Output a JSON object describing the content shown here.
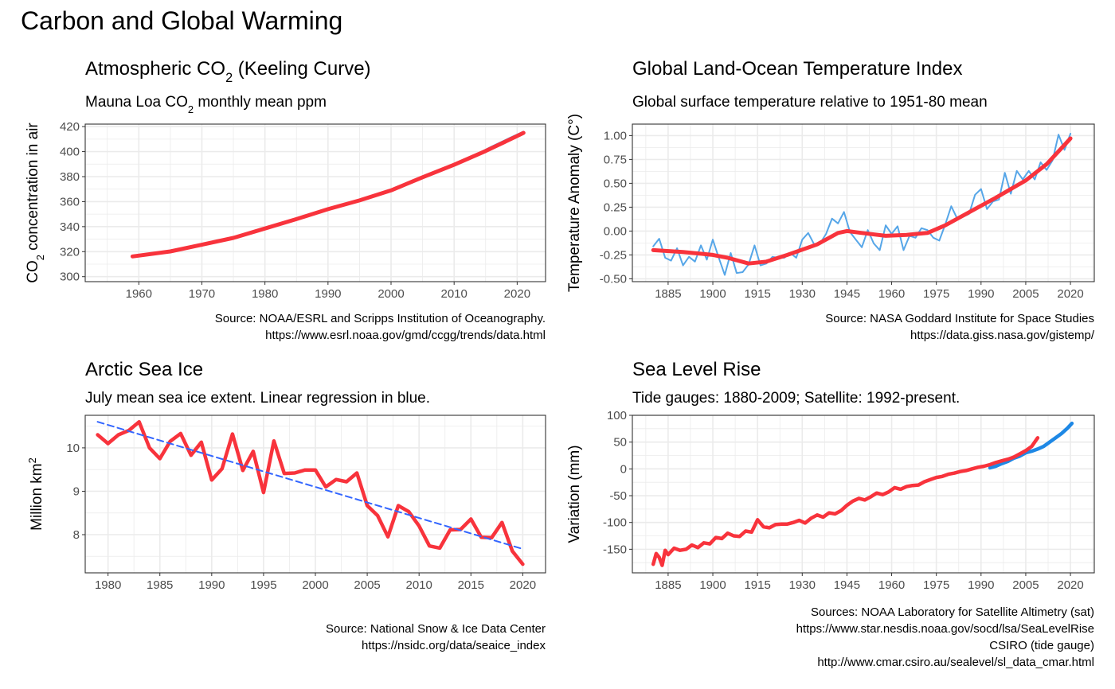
{
  "title": "Carbon and Global Warming",
  "colors": {
    "red": "#F8333C",
    "blue": "#56A6E8",
    "dash": "#3366FF",
    "satellite": "#1E88E5",
    "grid": "#EBEBEB",
    "border": "#333333"
  },
  "chart_data": [
    {
      "type": "line",
      "title_main": "Atmospheric CO",
      "title_sub_script": "2",
      "title_tail": " (Keeling Curve)",
      "subtitle_main": "Mauna Loa CO",
      "subtitle_sub_script": "2",
      "subtitle_tail": " monthly mean ppm",
      "ylabel_main": "CO",
      "ylabel_sub_script": "2",
      "ylabel_tail": " concentration in air",
      "xlabel": "",
      "xlim": [
        1951.5,
        2024.5
      ],
      "ylim": [
        296,
        422
      ],
      "xticks": [
        1960,
        1970,
        1980,
        1990,
        2000,
        2010,
        2020
      ],
      "yticks": [
        300,
        320,
        340,
        360,
        380,
        400,
        420
      ],
      "caption": [
        "Source: NOAA/ESRL and Scripps Institution of Oceanography.",
        "https://www.esrl.noaa.gov/gmd/ccgg/trends/data.html"
      ],
      "series": [
        {
          "role": "monthly",
          "color": "#56A6E8",
          "x": [
            1959,
            1962,
            1965,
            1968,
            1971,
            1974,
            1977,
            1980,
            1983,
            1986,
            1989,
            1992,
            1995,
            1998,
            2001,
            2004,
            2007,
            2010,
            2013,
            2016,
            2019,
            2021
          ],
          "y": [
            315.9,
            318.4,
            320.0,
            323.0,
            326.3,
            330.2,
            333.8,
            338.6,
            343.0,
            347.2,
            352.9,
            356.5,
            360.8,
            366.7,
            371.0,
            377.6,
            383.7,
            389.9,
            396.5,
            404.2,
            411.4,
            416.0
          ]
        },
        {
          "role": "smooth",
          "color": "#F8333C",
          "x": [
            1959,
            1965,
            1970,
            1975,
            1980,
            1985,
            1990,
            1995,
            2000,
            2005,
            2010,
            2015,
            2020,
            2021
          ],
          "y": [
            316.2,
            320.2,
            325.5,
            331.0,
            338.5,
            346.0,
            354.0,
            361.0,
            369.0,
            379.5,
            389.5,
            400.5,
            412.5,
            415.0
          ]
        }
      ]
    },
    {
      "type": "line",
      "title_main": "Global Land-Ocean Temperature Index",
      "subtitle_main": "Global surface temperature relative to 1951-80 mean",
      "ylabel_main": "Temperature Anomaly (C°)",
      "xlabel": "",
      "xlim": [
        1873,
        2028
      ],
      "ylim": [
        -0.53,
        1.12
      ],
      "xticks": [
        1885,
        1900,
        1915,
        1930,
        1945,
        1960,
        1975,
        1990,
        2005,
        2020
      ],
      "yticks": [
        -0.5,
        -0.25,
        0.0,
        0.25,
        0.5,
        0.75,
        1.0
      ],
      "ytick_labels": [
        "-0.50",
        "-0.25",
        "0.00",
        "0.25",
        "0.50",
        "0.75",
        "1.00"
      ],
      "caption": [
        "Source: NASA Goddard Institute for Space Studies",
        "https://data.giss.nasa.gov/gistemp/"
      ],
      "series": [
        {
          "role": "annual",
          "color": "#56A6E8",
          "x": [
            1880,
            1882,
            1884,
            1886,
            1888,
            1890,
            1892,
            1894,
            1896,
            1898,
            1900,
            1902,
            1904,
            1906,
            1908,
            1910,
            1912,
            1914,
            1916,
            1918,
            1920,
            1922,
            1924,
            1926,
            1928,
            1930,
            1932,
            1934,
            1936,
            1938,
            1940,
            1942,
            1944,
            1946,
            1948,
            1950,
            1952,
            1954,
            1956,
            1958,
            1960,
            1962,
            1964,
            1966,
            1968,
            1970,
            1972,
            1974,
            1976,
            1978,
            1980,
            1982,
            1984,
            1986,
            1988,
            1990,
            1992,
            1994,
            1996,
            1998,
            2000,
            2002,
            2004,
            2006,
            2008,
            2010,
            2012,
            2014,
            2016,
            2018,
            2020
          ],
          "y": [
            -0.16,
            -0.08,
            -0.28,
            -0.31,
            -0.18,
            -0.36,
            -0.27,
            -0.32,
            -0.15,
            -0.3,
            -0.09,
            -0.28,
            -0.46,
            -0.23,
            -0.44,
            -0.43,
            -0.35,
            -0.15,
            -0.36,
            -0.34,
            -0.27,
            -0.28,
            -0.28,
            -0.23,
            -0.28,
            -0.09,
            -0.02,
            -0.14,
            -0.13,
            -0.03,
            0.13,
            0.08,
            0.2,
            -0.01,
            -0.09,
            -0.17,
            0.01,
            -0.13,
            -0.2,
            0.06,
            -0.03,
            0.05,
            -0.2,
            -0.05,
            -0.07,
            0.03,
            0.01,
            -0.07,
            -0.1,
            0.07,
            0.26,
            0.13,
            0.15,
            0.18,
            0.38,
            0.44,
            0.23,
            0.31,
            0.33,
            0.61,
            0.39,
            0.63,
            0.54,
            0.63,
            0.54,
            0.72,
            0.64,
            0.74,
            1.01,
            0.85,
            1.02
          ]
        },
        {
          "role": "smooth",
          "color": "#F8333C",
          "x": [
            1880,
            1890,
            1900,
            1905,
            1912,
            1918,
            1925,
            1935,
            1942,
            1945,
            1950,
            1958,
            1965,
            1972,
            1978,
            1985,
            1995,
            2005,
            2012,
            2020
          ],
          "y": [
            -0.2,
            -0.22,
            -0.25,
            -0.28,
            -0.34,
            -0.32,
            -0.25,
            -0.14,
            -0.02,
            0.0,
            -0.02,
            -0.05,
            -0.04,
            -0.02,
            0.06,
            0.18,
            0.35,
            0.53,
            0.7,
            0.97
          ]
        }
      ]
    },
    {
      "type": "line",
      "title_main": "Arctic Sea Ice",
      "subtitle_main": "July mean sea ice extent. Linear regression in blue.",
      "ylabel_main": "Million km",
      "ylabel_sup_script": "2",
      "xlabel": "",
      "xlim": [
        1977.8,
        2022.2
      ],
      "ylim": [
        7.12,
        10.75
      ],
      "xticks": [
        1980,
        1985,
        1990,
        1995,
        2000,
        2005,
        2010,
        2015,
        2020
      ],
      "yticks": [
        8,
        9,
        10
      ],
      "caption": [
        "Source: National Snow & Ice Data Center",
        "https://nsidc.org/data/seaice_index"
      ],
      "series": [
        {
          "role": "extent",
          "color": "#F8333C",
          "x": [
            1979,
            1980,
            1981,
            1982,
            1983,
            1984,
            1985,
            1986,
            1987,
            1988,
            1989,
            1990,
            1991,
            1992,
            1993,
            1994,
            1995,
            1996,
            1997,
            1998,
            1999,
            2000,
            2001,
            2002,
            2003,
            2004,
            2005,
            2006,
            2007,
            2008,
            2009,
            2010,
            2011,
            2012,
            2013,
            2014,
            2015,
            2016,
            2017,
            2018,
            2019,
            2020
          ],
          "y": [
            10.3,
            10.1,
            10.3,
            10.4,
            10.6,
            10.0,
            9.75,
            10.15,
            10.33,
            9.83,
            10.13,
            9.26,
            9.52,
            10.32,
            9.48,
            9.92,
            8.97,
            10.16,
            9.41,
            9.42,
            9.49,
            9.49,
            9.1,
            9.27,
            9.22,
            9.42,
            8.67,
            8.44,
            7.95,
            8.67,
            8.53,
            8.2,
            7.74,
            7.69,
            8.11,
            8.12,
            8.36,
            7.94,
            7.93,
            8.28,
            7.62,
            7.32
          ]
        },
        {
          "role": "regression",
          "color": "#3366FF",
          "x": [
            1979,
            2020
          ],
          "y": [
            10.6,
            7.67
          ]
        }
      ]
    },
    {
      "type": "line",
      "title_main": "Sea Level Rise",
      "subtitle_main": "Tide gauges: 1880-2009; Satellite: 1992-present.",
      "ylabel_main": "Variation (mm)",
      "xlabel": "",
      "xlim": [
        1873,
        2028
      ],
      "ylim": [
        -194,
        100
      ],
      "xticks": [
        1885,
        1900,
        1915,
        1930,
        1945,
        1960,
        1975,
        1990,
        2005,
        2020
      ],
      "yticks": [
        -150,
        -100,
        -50,
        0,
        50,
        100
      ],
      "caption": [
        "Sources: NOAA Laboratory for Satellite Altimetry (sat)",
        "https://www.star.nesdis.noaa.gov/socd/lsa/SeaLevelRise",
        "CSIRO (tide gauge)",
        "http://www.cmar.csiro.au/sealevel/sl_data_cmar.html"
      ],
      "series": [
        {
          "role": "satellite",
          "color": "#1E88E5",
          "x": [
            1993,
            1995,
            1997,
            1999,
            2001,
            2003,
            2005,
            2007,
            2009,
            2011,
            2013,
            2015,
            2017,
            2019,
            2020.5
          ],
          "y": [
            2,
            5,
            10,
            14,
            20,
            24,
            30,
            33,
            37,
            42,
            50,
            58,
            66,
            76,
            85
          ]
        },
        {
          "role": "tide-gauge",
          "color": "#F8333C",
          "x": [
            1880,
            1881,
            1882,
            1883,
            1884,
            1885,
            1887,
            1889,
            1891,
            1893,
            1895,
            1897,
            1899,
            1901,
            1903,
            1905,
            1907,
            1909,
            1911,
            1913,
            1915,
            1917,
            1919,
            1921,
            1923,
            1925,
            1927,
            1929,
            1931,
            1933,
            1935,
            1937,
            1939,
            1941,
            1943,
            1945,
            1947,
            1949,
            1951,
            1953,
            1955,
            1957,
            1959,
            1961,
            1963,
            1965,
            1967,
            1969,
            1971,
            1973,
            1975,
            1977,
            1979,
            1981,
            1983,
            1985,
            1987,
            1989,
            1991,
            1993,
            1995,
            1997,
            1999,
            2001,
            2003,
            2005,
            2007,
            2009
          ],
          "y": [
            -178,
            -158,
            -165,
            -180,
            -152,
            -160,
            -148,
            -152,
            -150,
            -142,
            -147,
            -138,
            -140,
            -128,
            -130,
            -120,
            -125,
            -126,
            -116,
            -118,
            -95,
            -108,
            -110,
            -104,
            -103,
            -103,
            -100,
            -96,
            -101,
            -92,
            -86,
            -90,
            -82,
            -84,
            -78,
            -68,
            -60,
            -55,
            -58,
            -52,
            -45,
            -48,
            -43,
            -35,
            -38,
            -33,
            -31,
            -30,
            -24,
            -20,
            -16,
            -14,
            -10,
            -8,
            -5,
            -3,
            0,
            3,
            5,
            8,
            12,
            15,
            18,
            22,
            28,
            34,
            42,
            58
          ]
        }
      ]
    }
  ]
}
